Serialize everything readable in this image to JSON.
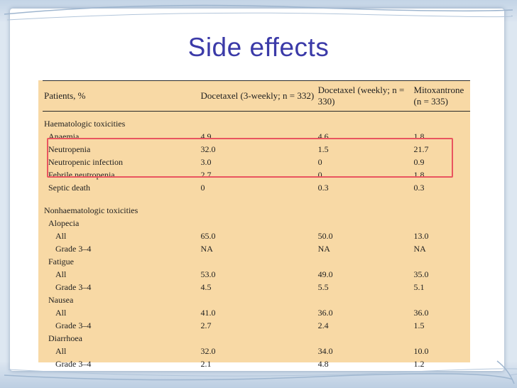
{
  "slide": {
    "title": "Side effects"
  },
  "table": {
    "headers": [
      "Patients, %",
      "Docetaxel (3-weekly; n = 332)",
      "Docetaxel (weekly; n = 330)",
      "Mitoxantrone (n = 335)"
    ],
    "rows": [
      {
        "label": "Haematologic toxicities",
        "level": 0,
        "values": [
          "",
          "",
          ""
        ]
      },
      {
        "label": "Anaemia",
        "level": 1,
        "values": [
          "4.9",
          "4.6",
          "1.8"
        ]
      },
      {
        "label": "Neutropenia",
        "level": 1,
        "values": [
          "32.0",
          "1.5",
          "21.7"
        ]
      },
      {
        "label": "Neutropenic infection",
        "level": 1,
        "values": [
          "3.0",
          "0",
          "0.9"
        ]
      },
      {
        "label": "Febrile neutropenia",
        "level": 1,
        "values": [
          "2.7",
          "0",
          "1.8"
        ]
      },
      {
        "label": "Septic death",
        "level": 1,
        "values": [
          "0",
          "0.3",
          "0.3"
        ]
      },
      {
        "label": "Nonhaematologic toxicities",
        "level": 0,
        "values": [
          "",
          "",
          ""
        ]
      },
      {
        "label": "Alopecia",
        "level": 1,
        "values": [
          "",
          "",
          ""
        ]
      },
      {
        "label": "All",
        "level": 2,
        "values": [
          "65.0",
          "50.0",
          "13.0"
        ]
      },
      {
        "label": "Grade 3–4",
        "level": 2,
        "values": [
          "NA",
          "NA",
          "NA"
        ]
      },
      {
        "label": "Fatigue",
        "level": 1,
        "values": [
          "",
          "",
          ""
        ]
      },
      {
        "label": "All",
        "level": 2,
        "values": [
          "53.0",
          "49.0",
          "35.0"
        ]
      },
      {
        "label": "Grade 3–4",
        "level": 2,
        "values": [
          "4.5",
          "5.5",
          "5.1"
        ]
      },
      {
        "label": "Nausea",
        "level": 1,
        "values": [
          "",
          "",
          ""
        ]
      },
      {
        "label": "All",
        "level": 2,
        "values": [
          "41.0",
          "36.0",
          "36.0"
        ]
      },
      {
        "label": "Grade 3–4",
        "level": 2,
        "values": [
          "2.7",
          "2.4",
          "1.5"
        ]
      },
      {
        "label": "Diarrhoea",
        "level": 1,
        "values": [
          "",
          "",
          ""
        ]
      },
      {
        "label": "All",
        "level": 2,
        "values": [
          "32.0",
          "34.0",
          "10.0"
        ]
      },
      {
        "label": "Grade 3–4",
        "level": 2,
        "values": [
          "2.1",
          "4.8",
          "1.2"
        ]
      }
    ]
  },
  "colors": {
    "title": "#3b3aa8",
    "panel": "#f8d9a5",
    "highlight": "#e9555f"
  }
}
